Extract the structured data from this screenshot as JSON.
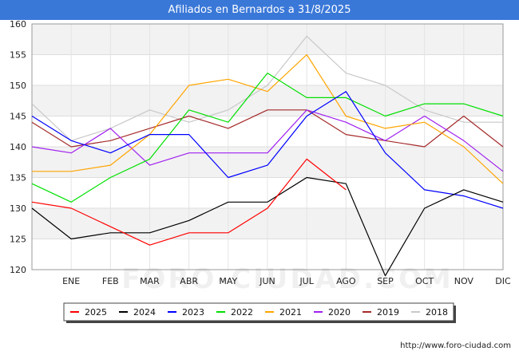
{
  "header": {
    "title": "Afiliados en Bernardos a 31/8/2025"
  },
  "watermark": "FORO-CIUDAD.COM",
  "source": "http://www.foro-ciudad.com",
  "chart_data": {
    "type": "line",
    "title": "Afiliados en Bernardos a 31/8/2025",
    "xlabel": "",
    "ylabel": "",
    "ylim": [
      120,
      160
    ],
    "yticks": [
      120,
      125,
      130,
      135,
      140,
      145,
      150,
      155,
      160
    ],
    "categories": [
      "",
      "ENE",
      "FEB",
      "MAR",
      "ABR",
      "MAY",
      "JUN",
      "JUL",
      "AGO",
      "SEP",
      "OCT",
      "NOV",
      "DIC"
    ],
    "grid": true,
    "legend_position": "bottom",
    "series": [
      {
        "name": "2025",
        "color": "#ff0000",
        "values": [
          131,
          130,
          127,
          124,
          126,
          126,
          130,
          138,
          133,
          null,
          null,
          null,
          null
        ]
      },
      {
        "name": "2024",
        "color": "#000000",
        "values": [
          130,
          125,
          126,
          126,
          128,
          131,
          131,
          135,
          134,
          119,
          130,
          133,
          131
        ]
      },
      {
        "name": "2023",
        "color": "#0000ff",
        "values": [
          145,
          141,
          139,
          142,
          142,
          135,
          137,
          145,
          149,
          139,
          133,
          132,
          130
        ]
      },
      {
        "name": "2022",
        "color": "#00e000",
        "values": [
          134,
          131,
          135,
          138,
          146,
          144,
          152,
          148,
          148,
          145,
          147,
          147,
          145
        ]
      },
      {
        "name": "2021",
        "color": "#ffa500",
        "values": [
          136,
          136,
          137,
          142,
          150,
          151,
          149,
          155,
          145,
          143,
          144,
          140,
          134
        ]
      },
      {
        "name": "2020",
        "color": "#a020f0",
        "values": [
          140,
          139,
          143,
          137,
          139,
          139,
          139,
          146,
          144,
          141,
          145,
          141,
          136
        ]
      },
      {
        "name": "2019",
        "color": "#a52a2a",
        "values": [
          144,
          140,
          141,
          143,
          145,
          143,
          146,
          146,
          142,
          141,
          140,
          145,
          140
        ]
      },
      {
        "name": "2018",
        "color": "#c8c8c8",
        "values": [
          147,
          141,
          143,
          146,
          144,
          146,
          150,
          158,
          152,
          150,
          146,
          144,
          144
        ]
      }
    ]
  }
}
